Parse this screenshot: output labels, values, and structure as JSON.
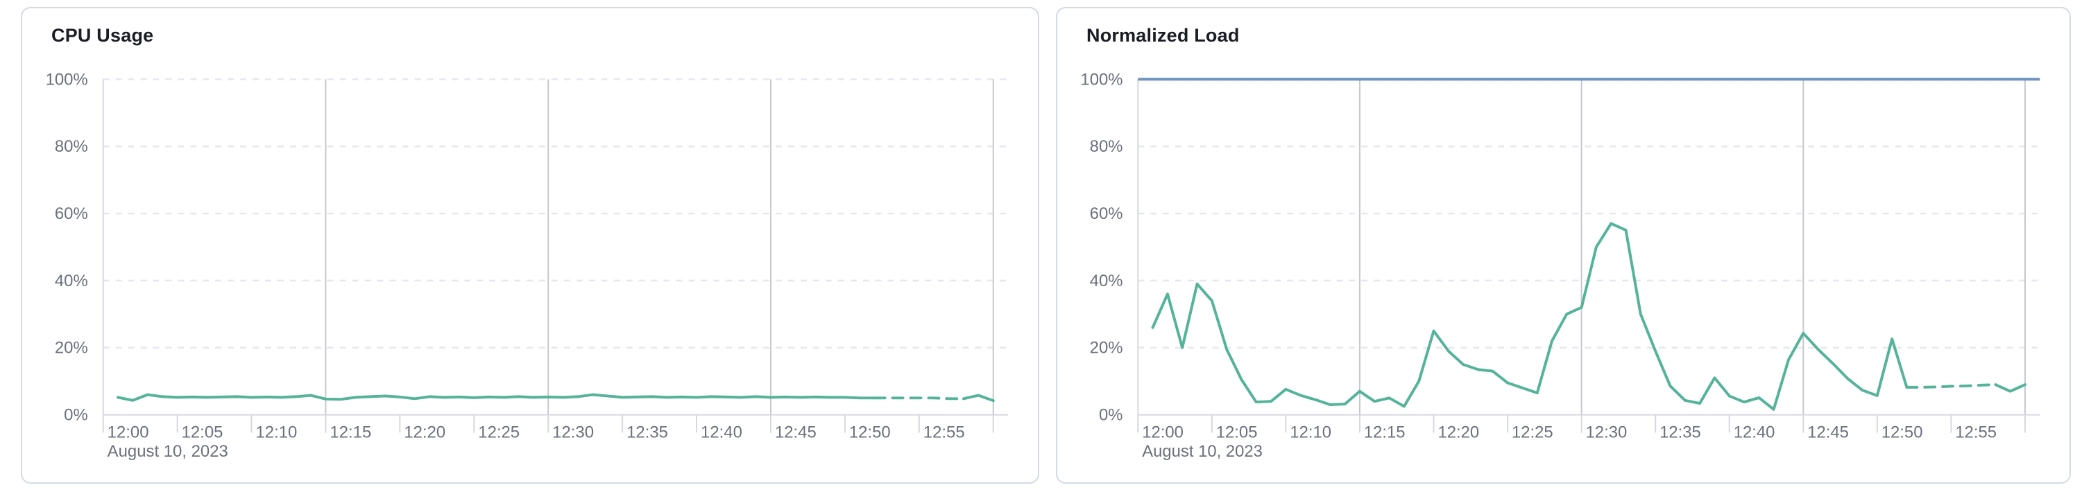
{
  "palette": {
    "series_green": "#54b399",
    "threshold_blue": "#6c93c0",
    "grid_dashed": "#e4e7ee",
    "grid_solid": "#c6c8cd",
    "axis_line": "#d5d8df",
    "tick_label": "#6a707c",
    "title_text": "#1a1d24",
    "card_border": "#d3dae6"
  },
  "chart_data": [
    {
      "type": "line",
      "title": "CPU Usage",
      "date_context_label": "August 10, 2023",
      "x_start": "12:00",
      "x_end": "13:01",
      "points_start": "12:01",
      "points_interval_minutes": 1,
      "x_tick_labels": [
        "12:00",
        "12:05",
        "12:10",
        "12:15",
        "12:20",
        "12:25",
        "12:30",
        "12:35",
        "12:40",
        "12:45",
        "12:50",
        "12:55"
      ],
      "y_tick_labels": [
        "0%",
        "20%",
        "40%",
        "60%",
        "80%",
        "100%"
      ],
      "ylim": [
        0,
        100
      ],
      "grid": {
        "horizontal": "dashed-every-20pct",
        "vertical_solid_every_minutes": 15
      },
      "legend": "none",
      "line_color": "#54b399",
      "dash_start_minute": 52,
      "dash_end_minute": 58,
      "values": [
        5.2,
        4.3,
        6.0,
        5.4,
        5.2,
        5.3,
        5.2,
        5.3,
        5.4,
        5.2,
        5.3,
        5.2,
        5.4,
        5.8,
        4.7,
        4.6,
        5.2,
        5.4,
        5.6,
        5.3,
        4.8,
        5.4,
        5.2,
        5.3,
        5.1,
        5.3,
        5.2,
        5.4,
        5.2,
        5.3,
        5.2,
        5.4,
        6.0,
        5.6,
        5.2,
        5.3,
        5.4,
        5.2,
        5.3,
        5.2,
        5.4,
        5.3,
        5.2,
        5.4,
        5.2,
        5.3,
        5.2,
        5.3,
        5.2,
        5.2,
        5.0,
        5.0,
        5.0,
        5.0,
        5.0,
        5.0,
        4.8,
        4.8,
        5.8,
        4.2
      ]
    },
    {
      "type": "line",
      "title": "Normalized Load",
      "date_context_label": "August 10, 2023",
      "x_start": "12:00",
      "x_end": "13:01",
      "points_start": "12:01",
      "points_interval_minutes": 1,
      "x_tick_labels": [
        "12:00",
        "12:05",
        "12:10",
        "12:15",
        "12:20",
        "12:25",
        "12:30",
        "12:35",
        "12:40",
        "12:45",
        "12:50",
        "12:55"
      ],
      "y_tick_labels": [
        "0%",
        "20%",
        "40%",
        "60%",
        "80%",
        "100%"
      ],
      "ylim": [
        0,
        100
      ],
      "grid": {
        "horizontal": "dashed-every-20pct",
        "vertical_solid_every_minutes": 15
      },
      "legend": "none",
      "line_color": "#54b399",
      "threshold_line": {
        "value": 100,
        "color": "#6c93c0"
      },
      "dash_start_minute": 52,
      "dash_end_minute": 58,
      "values": [
        26,
        36,
        20,
        39,
        34,
        19.5,
        10.5,
        3.8,
        4,
        7.6,
        5.8,
        4.5,
        3,
        3.2,
        7,
        4,
        5,
        2.5,
        10,
        25,
        19,
        15,
        13.5,
        13,
        9.5,
        8,
        6.5,
        22,
        30,
        32,
        50,
        57,
        55,
        30,
        19,
        8.6,
        4.3,
        3.4,
        11,
        5.6,
        3.8,
        5.1,
        1.6,
        16.4,
        24.3,
        19.5,
        15.3,
        10.8,
        7.3,
        5.7,
        22.6,
        8.2,
        8.2,
        8.3,
        8.5,
        8.6,
        8.8,
        9,
        7,
        9
      ]
    }
  ]
}
